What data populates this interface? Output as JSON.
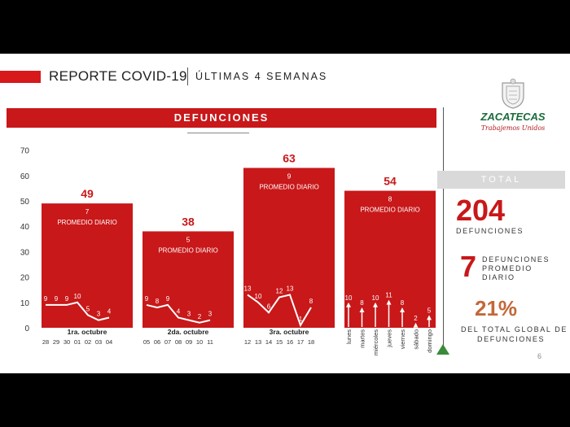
{
  "header": {
    "title": "REPORTE COVID-19",
    "subtitle": "ÚLTIMAS 4 SEMANAS"
  },
  "section_title": "DEFUNCIONES",
  "brand": {
    "name": "ZACATECAS",
    "slogan": "Trabajemos Unidos"
  },
  "summary": {
    "total_label": "TOTAL",
    "total_value": "204",
    "total_caption": "DEFUNCIONES",
    "avg_value": "7",
    "avg_caption_1": "DEFUNCIONES",
    "avg_caption_2": "PROMEDIO",
    "avg_caption_3": "DIARIO",
    "pct_value": "21%",
    "pct_caption_1": "DEL TOTAL GLOBAL DE",
    "pct_caption_2": "DEFUNCIONES"
  },
  "page_number": "6",
  "colors": {
    "accent": "#c8181a",
    "brand_green": "#1a6b3a",
    "marker_green": "#3a8a3a"
  },
  "chart_data": {
    "type": "bar",
    "ylim": [
      0,
      70
    ],
    "yticks": [
      0,
      10,
      20,
      30,
      40,
      50,
      60,
      70
    ],
    "weeks": [
      {
        "label": "1ra. octubre",
        "total": 49,
        "avg": "7",
        "avg_label": "PROMEDIO DIARIO",
        "days": [
          "28",
          "29",
          "30",
          "01",
          "02",
          "03",
          "04"
        ],
        "daily": [
          9,
          9,
          9,
          10,
          5,
          3,
          4
        ]
      },
      {
        "label": "2da. octubre",
        "total": 38,
        "avg": "5",
        "avg_label": "PROMEDIO DIARIO",
        "days": [
          "05",
          "06",
          "07",
          "08",
          "09",
          "10",
          "11"
        ],
        "daily": [
          9,
          8,
          9,
          4,
          3,
          2,
          3
        ]
      },
      {
        "label": "3ra. octubre",
        "total": 63,
        "avg": "9",
        "avg_label": "PROMEDIO DIARIO",
        "days": [
          "12",
          "13",
          "14",
          "15",
          "16",
          "17",
          "18"
        ],
        "daily": [
          13,
          10,
          6,
          12,
          13,
          1,
          8
        ]
      },
      {
        "label": "",
        "total": 54,
        "avg": "8",
        "avg_label": "PROMEDIO DIARIO",
        "days": [
          "lunes",
          "martes",
          "miércoles",
          "jueves",
          "viernes",
          "sábado",
          "domingo"
        ],
        "daily": [
          10,
          8,
          10,
          11,
          8,
          2,
          5
        ]
      }
    ]
  }
}
